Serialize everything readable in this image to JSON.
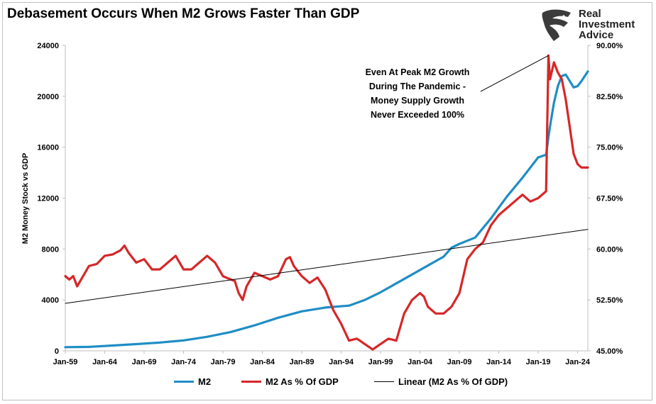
{
  "title": "Debasement Occurs When M2 Grows Faster Than GDP",
  "logo": {
    "line1": "Real",
    "line2": "Investment",
    "line3": "Advice",
    "icon": "eagle-head-icon"
  },
  "colors": {
    "m2": "#1f8dc5",
    "ratio": "#d62728",
    "linear": "#000000",
    "grid_axis": "#bfbfbf"
  },
  "legend": {
    "m2": "M2",
    "ratio": "M2 As % Of GDP",
    "linear": "Linear (M2 As % Of GDP)"
  },
  "annotation": [
    "Even At Peak M2 Growth",
    "During The Pandemic -",
    "Money Supply Growth",
    "Never Exceeded 100%"
  ],
  "chart_data": {
    "type": "line",
    "title": "Debasement Occurs When M2 Grows Faster Than GDP",
    "ylabel": "M2 Money Stock vs GDP",
    "ylim": [
      0,
      24000
    ],
    "y2lim": [
      45,
      90
    ],
    "xlim": [
      1959,
      2025.3
    ],
    "x_tick_labels": [
      "Jan-59",
      "Jan-64",
      "Jan-69",
      "Jan-74",
      "Jan-79",
      "Jan-84",
      "Jan-89",
      "Jan-94",
      "Jan-99",
      "Jan-04",
      "Jan-09",
      "Jan-14",
      "Jan-19",
      "Jan-24"
    ],
    "x_tick_years": [
      1959,
      1964,
      1969,
      1974,
      1979,
      1984,
      1989,
      1994,
      1999,
      2004,
      2009,
      2014,
      2019,
      2024
    ],
    "y_tick_labels": [
      "0",
      "4000",
      "8000",
      "12000",
      "16000",
      "20000",
      "24000"
    ],
    "y_tick_values": [
      0,
      4000,
      8000,
      12000,
      16000,
      20000,
      24000
    ],
    "y2_tick_labels": [
      "45.00%",
      "52.50%",
      "60.00%",
      "67.50%",
      "75.00%",
      "82.50%",
      "90.00%"
    ],
    "y2_tick_values": [
      45,
      52.5,
      60,
      67.5,
      75,
      82.5,
      90
    ],
    "grid": false,
    "legend_position": "bottom",
    "series": [
      {
        "name": "M2",
        "axis": "left",
        "x": [
          1959,
          1962,
          1965,
          1968,
          1971,
          1974,
          1977,
          1980,
          1983,
          1986,
          1989,
          1992,
          1995,
          1997,
          1999,
          2001,
          2003,
          2005,
          2007,
          2008,
          2009,
          2011,
          2013,
          2015,
          2017,
          2019,
          2020,
          2020.3,
          2020.6,
          2021,
          2021.5,
          2022,
          2022.5,
          2023,
          2023.5,
          2024,
          2024.5,
          2025.3
        ],
        "values": [
          290,
          310,
          420,
          530,
          650,
          820,
          1100,
          1480,
          2000,
          2600,
          3100,
          3400,
          3550,
          4000,
          4600,
          5300,
          6000,
          6700,
          7400,
          8100,
          8400,
          8900,
          10400,
          12100,
          13600,
          15200,
          15400,
          16800,
          18000,
          19500,
          20800,
          21600,
          21700,
          21200,
          20700,
          20800,
          21200,
          21950
        ]
      },
      {
        "name": "M2 As % Of GDP",
        "axis": "right",
        "x": [
          1959,
          1959.5,
          1960,
          1960.5,
          1961,
          1962,
          1963,
          1964,
          1965,
          1966,
          1966.5,
          1967,
          1968,
          1969,
          1970,
          1971,
          1972,
          1973,
          1974,
          1975,
          1976,
          1977,
          1978,
          1979,
          1980,
          1980.5,
          1981,
          1981.5,
          1982,
          1983,
          1984,
          1985,
          1986,
          1987,
          1987.5,
          1988,
          1989,
          1990,
          1991,
          1992,
          1993,
          1994,
          1995,
          1996,
          1997,
          1998,
          1999,
          2000,
          2001,
          2002,
          2003,
          2004,
          2004.5,
          2005,
          2006,
          2007,
          2008,
          2009,
          2010,
          2011,
          2012,
          2013,
          2014,
          2015,
          2016,
          2017,
          2018,
          2019,
          2019.5,
          2020,
          2020.3,
          2020.5,
          2021,
          2021.5,
          2022,
          2022.5,
          2023,
          2023.5,
          2024,
          2024.5,
          2025.3
        ],
        "values": [
          56,
          55.5,
          56,
          54.5,
          55.5,
          57.5,
          57.8,
          59,
          59.2,
          59.8,
          60.5,
          59.5,
          58,
          58.5,
          57,
          57,
          58,
          59,
          57,
          57,
          58,
          59,
          58,
          56,
          55.5,
          55.3,
          53.5,
          52.5,
          54.5,
          56.5,
          56,
          55.5,
          56,
          58.5,
          58.8,
          57.5,
          56,
          55,
          55.8,
          54,
          51,
          49,
          46.5,
          46.8,
          46,
          45.2,
          46,
          46.8,
          46.5,
          50.5,
          52.5,
          53.5,
          53,
          51.5,
          50.5,
          50.5,
          51.5,
          53.5,
          58.5,
          60,
          61,
          63.5,
          65,
          66,
          67,
          68,
          67,
          67.5,
          68,
          68.5,
          88.5,
          85,
          87.5,
          86,
          85,
          82,
          78,
          74,
          72.5,
          72,
          72
        ]
      },
      {
        "name": "Linear (M2 As % Of GDP)",
        "axis": "right",
        "x": [
          1959,
          2025.3
        ],
        "values": [
          52,
          62.9
        ]
      }
    ],
    "annotations": [
      {
        "text": "Even At Peak M2 Growth / During The Pandemic - / Money Supply Growth / Never Exceeded 100%",
        "points_to": [
          2020.3,
          88.5
        ]
      }
    ]
  }
}
